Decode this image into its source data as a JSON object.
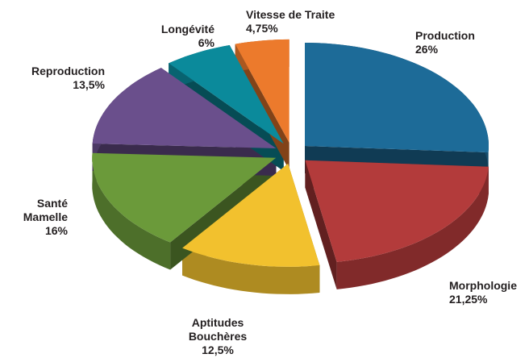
{
  "chart_data": {
    "type": "pie",
    "categories": [
      "Production",
      "Morphologie",
      "Aptitudes Bouchères",
      "Santé Mamelle",
      "Reproduction",
      "Longévité",
      "Vitesse de Traite"
    ],
    "values": [
      26,
      21.25,
      12.5,
      16,
      13.5,
      6,
      4.75
    ],
    "value_labels": [
      "26%",
      "21,25%",
      "12,5%",
      "16%",
      "13,5%",
      "6%",
      "4,75%"
    ],
    "colors": [
      "#1d6b98",
      "#b33b3b",
      "#f2c12e",
      "#6b9a3a",
      "#6a4f8c",
      "#0b8a9b",
      "#ec7a2c"
    ]
  }
}
